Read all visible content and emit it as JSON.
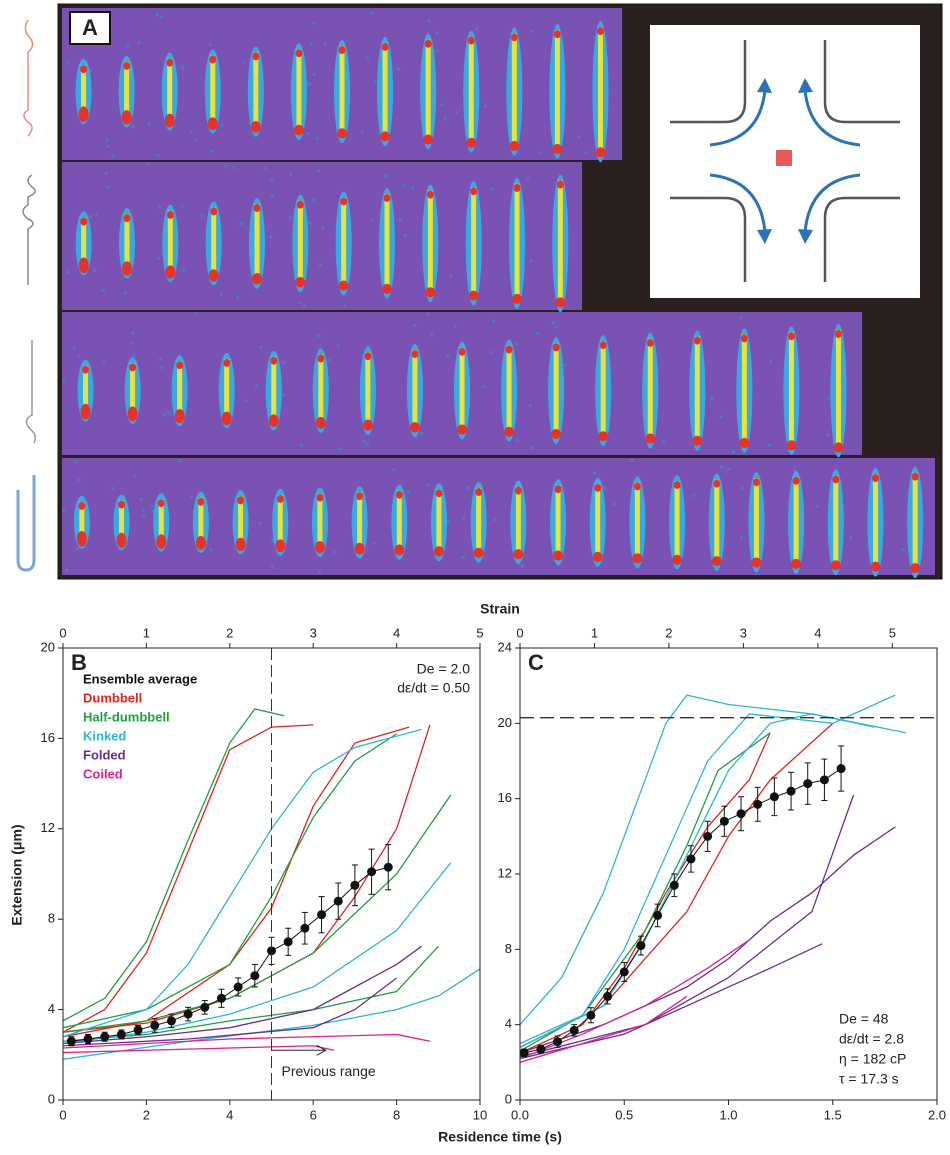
{
  "panel_a": {
    "label": "A"
  },
  "figure_labels": {
    "top_axis": "Strain",
    "bottom_axis": "Residence time (s)",
    "y_axis": "Extension (μm)"
  },
  "chart_data": [
    {
      "type": "line",
      "panel": "B",
      "xlim": [
        0,
        10
      ],
      "xticks": [
        0,
        2,
        4,
        6,
        8,
        10
      ],
      "x2lim": [
        0,
        5
      ],
      "x2ticks": [
        0,
        1,
        2,
        3,
        4,
        5
      ],
      "ylim": [
        0,
        20
      ],
      "yticks": [
        0,
        4,
        8,
        12,
        16,
        20
      ],
      "legend": "upper left",
      "annotations": [
        "De = 2.0",
        "dε/dt = 0.50"
      ],
      "vline": 5,
      "previous_range": {
        "label": "Previous range",
        "x": [
          5,
          6.3
        ],
        "y": 2.2
      },
      "ensemble": {
        "name": "Ensemble average",
        "color": "#111111",
        "x": [
          0.2,
          0.6,
          1.0,
          1.4,
          1.8,
          2.2,
          2.6,
          3.0,
          3.4,
          3.8,
          4.2,
          4.6,
          5.0,
          5.4,
          5.8,
          6.2,
          6.6,
          7.0,
          7.4,
          7.8
        ],
        "values": [
          2.6,
          2.7,
          2.8,
          2.9,
          3.1,
          3.3,
          3.5,
          3.8,
          4.1,
          4.5,
          5.0,
          5.5,
          6.6,
          7.0,
          7.6,
          8.2,
          8.8,
          9.5,
          10.1,
          10.3
        ],
        "errors": [
          0.2,
          0.2,
          0.2,
          0.2,
          0.2,
          0.3,
          0.3,
          0.3,
          0.3,
          0.4,
          0.4,
          0.5,
          0.6,
          0.6,
          0.7,
          0.8,
          0.8,
          0.9,
          1.0,
          1.0
        ]
      },
      "series": [
        {
          "name": "Dumbbell",
          "color": "#e0241b",
          "traces": [
            {
              "x": [
                0,
                1,
                2,
                3,
                4,
                5,
                6
              ],
              "values": [
                3,
                4,
                6.5,
                11,
                15.5,
                16.5,
                16.6
              ]
            },
            {
              "x": [
                0,
                2,
                4,
                5,
                6,
                7,
                8.3
              ],
              "values": [
                2.8,
                3.5,
                6,
                8.5,
                13,
                15.8,
                16.5
              ]
            },
            {
              "x": [
                0,
                2,
                4,
                6,
                7,
                8,
                8.8
              ],
              "values": [
                3,
                3.4,
                4.5,
                6.5,
                9,
                12,
                16.6
              ]
            }
          ]
        },
        {
          "name": "Half-dumbbell",
          "color": "#1fa03c",
          "traces": [
            {
              "x": [
                0,
                1,
                2,
                3,
                4,
                4.6,
                5.3
              ],
              "values": [
                3.5,
                4.5,
                7,
                11.5,
                15.8,
                17.3,
                17
              ]
            },
            {
              "x": [
                0,
                2,
                4,
                5,
                6,
                7,
                8
              ],
              "values": [
                3.2,
                4,
                6,
                9,
                12.5,
                15,
                16.2
              ]
            },
            {
              "x": [
                0,
                2,
                4,
                6,
                8,
                9.3
              ],
              "values": [
                3,
                3.5,
                4.5,
                6.5,
                10,
                13.5
              ]
            },
            {
              "x": [
                0,
                2,
                4,
                6,
                8,
                9
              ],
              "values": [
                2.6,
                2.9,
                3.5,
                4,
                4.8,
                6.8
              ]
            }
          ]
        },
        {
          "name": "Kinked",
          "color": "#2ab6e0",
          "traces": [
            {
              "x": [
                0,
                2,
                3,
                4,
                5,
                6,
                7,
                8.6
              ],
              "values": [
                2.8,
                4,
                6,
                9,
                12,
                14.5,
                15.6,
                16.4
              ]
            },
            {
              "x": [
                0,
                2,
                4,
                6,
                8,
                9.3
              ],
              "values": [
                2.5,
                3,
                3.8,
                5,
                7.5,
                10.5
              ]
            },
            {
              "x": [
                0,
                3,
                6,
                8,
                9,
                10
              ],
              "values": [
                1.8,
                2.6,
                3.3,
                4,
                4.6,
                5.8
              ]
            }
          ]
        },
        {
          "name": "Folded",
          "color": "#6a2c91",
          "traces": [
            {
              "x": [
                0,
                2,
                4,
                6,
                7,
                8,
                8.6
              ],
              "values": [
                2.5,
                2.8,
                3.2,
                4,
                5,
                6,
                6.8
              ]
            },
            {
              "x": [
                0,
                3,
                6,
                7,
                8
              ],
              "values": [
                2.4,
                2.7,
                3.2,
                4,
                5.4
              ]
            }
          ]
        },
        {
          "name": "Coiled",
          "color": "#e0218a",
          "traces": [
            {
              "x": [
                0,
                2,
                4,
                6,
                8,
                8.8
              ],
              "values": [
                2.3,
                2.5,
                2.7,
                2.8,
                2.9,
                2.6
              ]
            },
            {
              "x": [
                0,
                2,
                4,
                6,
                6.5
              ],
              "values": [
                2.1,
                2.2,
                2.3,
                2.4,
                2.2
              ]
            }
          ]
        }
      ]
    },
    {
      "type": "line",
      "panel": "C",
      "xlim": [
        0,
        2
      ],
      "xticks": [
        {
          "value": 0,
          "label": "0.0"
        },
        0.5,
        {
          "value": 1,
          "label": "1.0"
        },
        1.5,
        {
          "value": 2,
          "label": "2.0"
        }
      ],
      "x2lim": [
        0,
        5.6
      ],
      "x2ticks": [
        0,
        1,
        2,
        3,
        4,
        5
      ],
      "ylim": [
        0,
        24
      ],
      "yticks": [
        0,
        4,
        8,
        12,
        16,
        20,
        24
      ],
      "annotations": [
        "De = 48",
        "dε/dt = 2.8",
        "η = 182 cP",
        "τ = 17.3 s"
      ],
      "hline": 20.3,
      "ensemble": {
        "color": "#111111",
        "x": [
          0.02,
          0.1,
          0.18,
          0.26,
          0.34,
          0.42,
          0.5,
          0.58,
          0.66,
          0.74,
          0.82,
          0.9,
          0.98,
          1.06,
          1.14,
          1.22,
          1.3,
          1.38,
          1.46,
          1.54
        ],
        "values": [
          2.5,
          2.7,
          3.1,
          3.7,
          4.5,
          5.5,
          6.8,
          8.2,
          9.8,
          11.4,
          12.8,
          14.0,
          14.8,
          15.2,
          15.7,
          16.1,
          16.4,
          16.8,
          17.0,
          17.6
        ],
        "errors": [
          0.2,
          0.2,
          0.3,
          0.3,
          0.4,
          0.4,
          0.5,
          0.5,
          0.6,
          0.6,
          0.7,
          0.8,
          0.8,
          0.9,
          0.9,
          1.0,
          1.0,
          1.1,
          1.1,
          1.2
        ]
      },
      "series": [
        {
          "color": "#e0241b",
          "traces": [
            {
              "x": [
                0,
                0.3,
                0.5,
                0.7,
                0.9,
                1.1,
                1.2
              ],
              "values": [
                2.5,
                4,
                7,
                11,
                14.5,
                17,
                19.5
              ]
            },
            {
              "x": [
                0,
                0.4,
                0.8,
                1.0,
                1.2,
                1.5
              ],
              "values": [
                2.8,
                5,
                10,
                14,
                17,
                20
              ]
            }
          ]
        },
        {
          "color": "#1fa03c",
          "traces": [
            {
              "x": [
                0,
                0.3,
                0.6,
                0.8,
                0.95,
                1.2
              ],
              "values": [
                2.6,
                4.5,
                9,
                13.5,
                17.5,
                19.5
              ]
            }
          ]
        },
        {
          "color": "#2ab6e0",
          "traces": [
            {
              "x": [
                0,
                0.2,
                0.4,
                0.6,
                0.7,
                0.8,
                1.0,
                1.4,
                1.85
              ],
              "values": [
                4,
                6.5,
                11,
                17,
                20,
                21.5,
                21,
                20.5,
                19.5
              ]
            },
            {
              "x": [
                0,
                0.3,
                0.5,
                0.7,
                0.9,
                1.1,
                1.5,
                1.8
              ],
              "values": [
                3,
                4.5,
                8,
                13,
                18,
                20.5,
                20,
                21.5
              ]
            },
            {
              "x": [
                0,
                0.4,
                0.6,
                0.8,
                1.0,
                1.2,
                1.4,
                1.7
              ],
              "values": [
                2.8,
                5,
                8.5,
                13,
                17.5,
                20,
                20.5,
                19.8
              ]
            }
          ]
        },
        {
          "color": "#6a2c91",
          "traces": [
            {
              "x": [
                0,
                0.4,
                0.8,
                1.0,
                1.2,
                1.4,
                1.6,
                1.8
              ],
              "values": [
                2.5,
                4,
                6,
                7.5,
                9.5,
                11,
                13,
                14.5
              ]
            },
            {
              "x": [
                0,
                0.5,
                0.9,
                1.2,
                1.45
              ],
              "values": [
                2.2,
                3.5,
                5.5,
                7,
                8.3
              ]
            },
            {
              "x": [
                0,
                0.6,
                1.0,
                1.4,
                1.6
              ],
              "values": [
                2.3,
                4,
                6.5,
                10,
                16.2
              ]
            }
          ]
        },
        {
          "color": "#e0218a",
          "traces": [
            {
              "x": [
                0,
                0.3,
                0.6,
                0.9,
                1.1
              ],
              "values": [
                2.2,
                3.5,
                5,
                7,
                8.5
              ]
            },
            {
              "x": [
                0,
                0.3,
                0.6,
                0.8
              ],
              "values": [
                2,
                3,
                4,
                5.5
              ]
            }
          ]
        }
      ]
    }
  ]
}
